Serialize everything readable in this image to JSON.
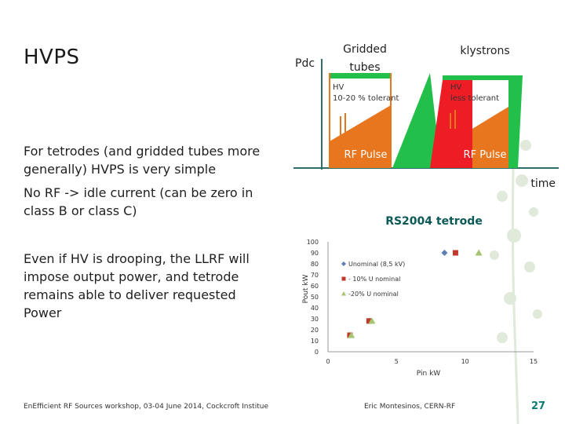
{
  "slide": {
    "title": "HVPS",
    "bullets": [
      "For tetrodes (and gridded tubes more generally) HVPS is very simple",
      "No RF -> idle current (can be zero in class B or class C)",
      "Even if HV is drooping, the LLRF will impose output power, and tetrode remains able to deliver requested Power"
    ],
    "footer_left": "EnEfficient RF Sources workshop, 03-04 June 2014, Cockcroft Institue",
    "footer_center": "Eric Montesinos, CERN-RF",
    "page_number": "27"
  },
  "diagram": {
    "pdc_label": "Pdc",
    "time_label": "time",
    "gridded_title_line1": "Gridded",
    "gridded_title_line2": "tubes",
    "klystrons_title": "klystrons",
    "gridded_hv_line1": "HV",
    "gridded_hv_line2": "10-20 % tolerant",
    "klystron_hv_line1": "HV",
    "klystron_hv_line2": "less tolerant",
    "rf_pulse_left": "RF Pulse",
    "rf_pulse_right": "RF Pulse",
    "colors": {
      "green": "#22c04a",
      "orange": "#e8761f",
      "red": "#ee1c25",
      "axis": "#2f6e6a"
    }
  },
  "chart_data": {
    "type": "scatter",
    "title": "RS2004 tetrode",
    "xlabel": "Pin kW",
    "ylabel": "Pout kW",
    "xlim": [
      0,
      15
    ],
    "ylim": [
      0,
      100
    ],
    "x_ticks": [
      0,
      5,
      10,
      15
    ],
    "y_ticks": [
      0,
      10,
      20,
      30,
      40,
      50,
      60,
      70,
      80,
      90,
      100
    ],
    "legend_position": "top-right",
    "series": [
      {
        "name": "Unominal (8,5 kV)",
        "color": "#5b7fb5",
        "marker": "diamond",
        "points": [
          [
            1.6,
            15
          ],
          [
            3.0,
            28
          ],
          [
            8.5,
            90
          ]
        ]
      },
      {
        "name": "- 10% U nominal",
        "color": "#c0392b",
        "marker": "square",
        "points": [
          [
            1.6,
            15
          ],
          [
            3.0,
            28
          ],
          [
            9.3,
            90
          ]
        ]
      },
      {
        "name": "-20% U nominal",
        "color": "#a6c36f",
        "marker": "triangle",
        "points": [
          [
            1.7,
            15
          ],
          [
            3.2,
            28
          ],
          [
            11.0,
            90
          ]
        ]
      }
    ]
  }
}
